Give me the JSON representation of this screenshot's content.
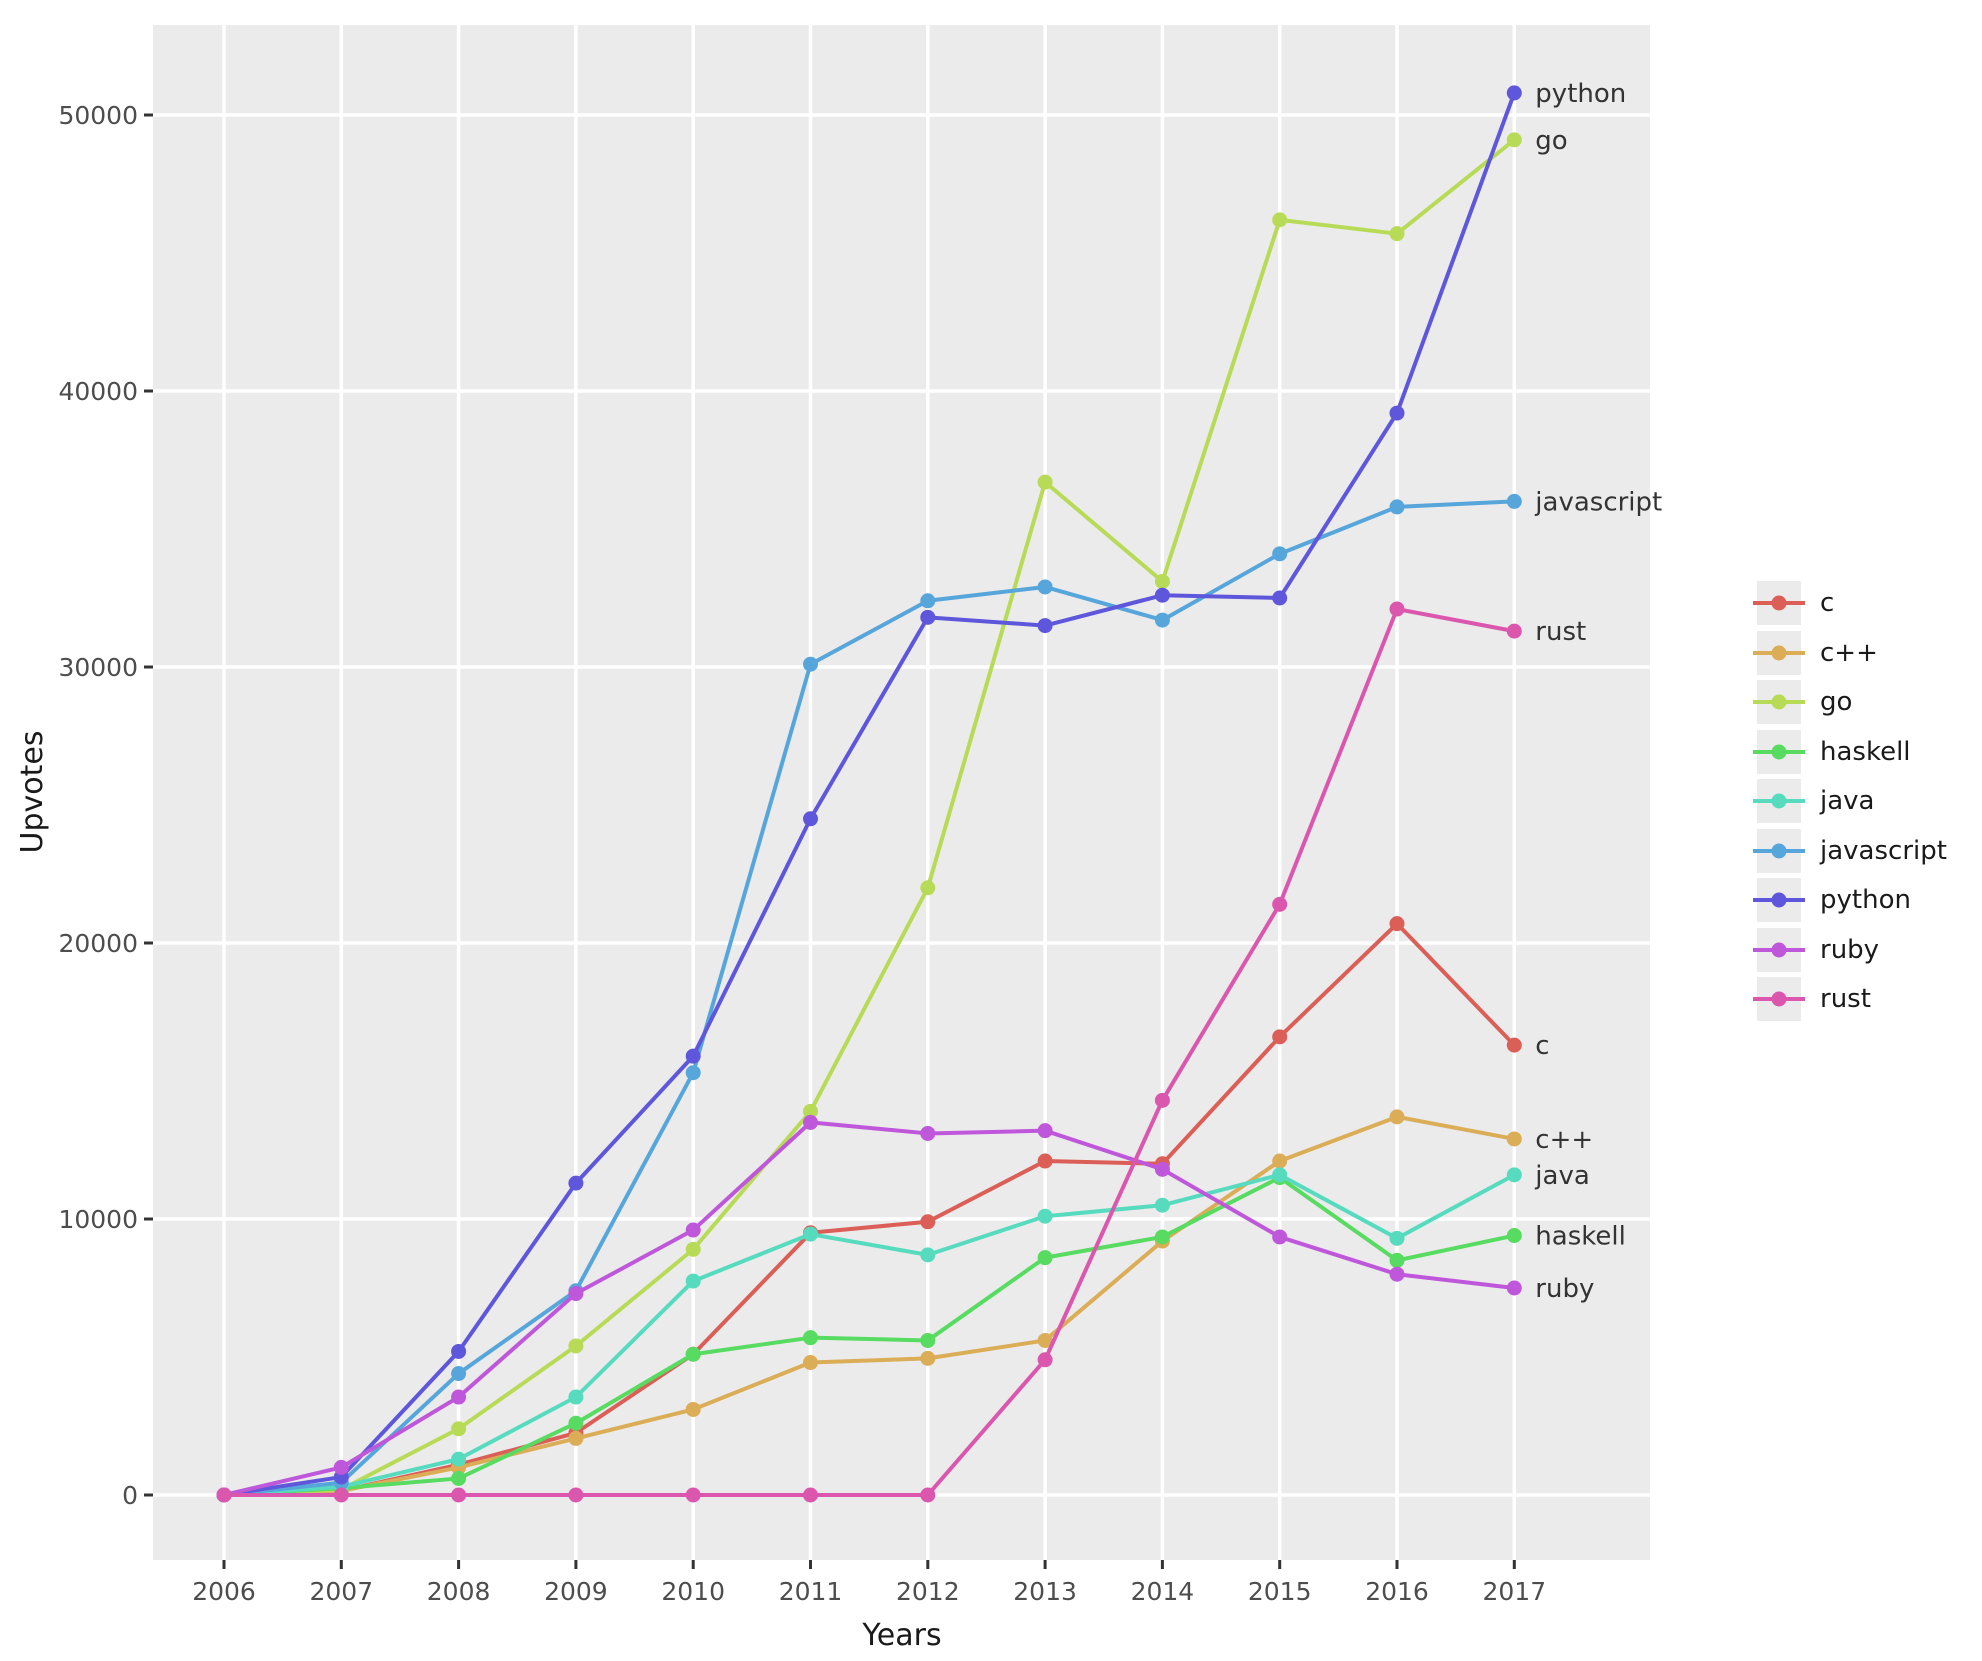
{
  "chart_data": {
    "type": "line",
    "title": "",
    "xlabel": "Years",
    "ylabel": "Upvotes",
    "x": [
      2006,
      2007,
      2008,
      2009,
      2010,
      2011,
      2012,
      2013,
      2014,
      2015,
      2016,
      2017
    ],
    "x_tick_labels": [
      "2006",
      "2007",
      "2008",
      "2009",
      "2010",
      "2011",
      "2012",
      "2013",
      "2014",
      "2015",
      "2016",
      "2017"
    ],
    "y_ticks": [
      0,
      10000,
      20000,
      30000,
      40000,
      50000
    ],
    "y_tick_labels": [
      "0",
      "10000",
      "20000",
      "30000",
      "40000",
      "50000"
    ],
    "ylim": [
      -2400,
      53400
    ],
    "xlim": [
      2005.4,
      2018.15
    ],
    "grid": true,
    "legend_position": "right",
    "series": [
      {
        "name": "c",
        "color": "#db5e57",
        "end_label": "c",
        "values": [
          0,
          150,
          1100,
          2250,
          5100,
          9500,
          9900,
          12100,
          12000,
          16600,
          20700,
          16300
        ]
      },
      {
        "name": "c++",
        "color": "#dbad57",
        "end_label": "c++",
        "values": [
          0,
          150,
          1000,
          2050,
          3100,
          4800,
          4950,
          5600,
          9200,
          12100,
          13700,
          12900
        ]
      },
      {
        "name": "go",
        "color": "#b8db57",
        "end_label": "go",
        "values": [
          0,
          200,
          2400,
          5400,
          8900,
          13900,
          22000,
          36700,
          33100,
          46200,
          45700,
          49100
        ]
      },
      {
        "name": "haskell",
        "color": "#57db61",
        "end_label": "haskell",
        "values": [
          0,
          250,
          600,
          2600,
          5100,
          5700,
          5600,
          8600,
          9350,
          11500,
          8500,
          9400
        ]
      },
      {
        "name": "java",
        "color": "#57dbbf",
        "end_label": "java",
        "values": [
          0,
          300,
          1300,
          3550,
          7750,
          9450,
          8700,
          10100,
          10500,
          11600,
          9300,
          11600
        ]
      },
      {
        "name": "javascript",
        "color": "#57a6db",
        "end_label": "javascript",
        "values": [
          0,
          450,
          4400,
          7400,
          15300,
          30100,
          32400,
          32900,
          31700,
          34100,
          35800,
          36000
        ]
      },
      {
        "name": "python",
        "color": "#5e57db",
        "end_label": "python",
        "values": [
          0,
          650,
          5200,
          11300,
          15900,
          24500,
          31800,
          31500,
          32600,
          32500,
          39200,
          50800
        ]
      },
      {
        "name": "ruby",
        "color": "#bf57db",
        "end_label": "ruby",
        "values": [
          0,
          1000,
          3550,
          7300,
          9600,
          13500,
          13100,
          13200,
          11800,
          9350,
          8000,
          7500
        ]
      },
      {
        "name": "rust",
        "color": "#db57ad",
        "end_label": "rust",
        "values": [
          0,
          0,
          0,
          0,
          0,
          0,
          0,
          4900,
          14300,
          21400,
          32100,
          31300
        ]
      }
    ]
  },
  "legend": {
    "items": [
      "c",
      "c++",
      "go",
      "haskell",
      "java",
      "javascript",
      "python",
      "ruby",
      "rust"
    ]
  },
  "colors": {
    "page_background": "#ffffff",
    "panel_background": "#ebebeb",
    "grid": "#ffffff",
    "tick": "#333333",
    "tick_label": "#4d4d4d",
    "axis_title": "#1a1a1a",
    "end_label": "#333333"
  }
}
